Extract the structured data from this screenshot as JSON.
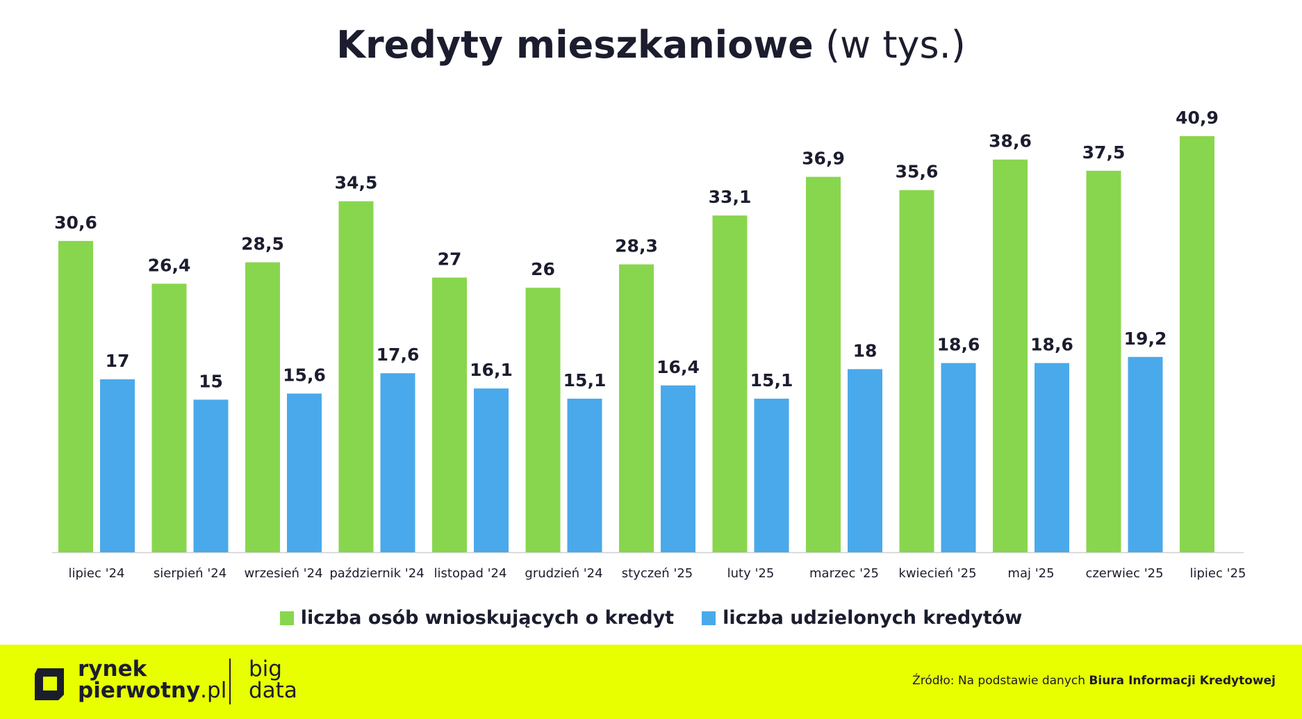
{
  "title": {
    "main": "Kredyty mieszkaniowe",
    "unit": "(w tys.)"
  },
  "colors": {
    "series1": "#88d64d",
    "series2": "#4aa9eb",
    "footer_bg": "#e8ff00",
    "text": "#1b1d2e"
  },
  "chart_data": {
    "type": "bar",
    "title": "Kredyty mieszkaniowe (w tys.)",
    "categories": [
      "lipiec '24",
      "sierpień '24",
      "wrzesień '24",
      "październik '24",
      "listopad '24",
      "grudzień '24",
      "styczeń '25",
      "luty '25",
      "marzec '25",
      "kwiecień '25",
      "maj '25",
      "czerwiec '25",
      "lipiec '25"
    ],
    "series": [
      {
        "name": "liczba osób wnioskujących o kredyt",
        "values": [
          30.6,
          26.4,
          28.5,
          34.5,
          27,
          26,
          28.3,
          33.1,
          36.9,
          35.6,
          38.6,
          37.5,
          40.9
        ],
        "labels": [
          "30,6",
          "26,4",
          "28,5",
          "34,5",
          "27",
          "26",
          "28,3",
          "33,1",
          "36,9",
          "35,6",
          "38,6",
          "37,5",
          "40,9"
        ]
      },
      {
        "name": "liczba udzielonych kredytów",
        "values": [
          17,
          15,
          15.6,
          17.6,
          16.1,
          15.1,
          16.4,
          15.1,
          18,
          18.6,
          18.6,
          19.2,
          null
        ],
        "labels": [
          "17",
          "15",
          "15,6",
          "17,6",
          "16,1",
          "15,1",
          "16,4",
          "15,1",
          "18",
          "18,6",
          "18,6",
          "19,2",
          ""
        ]
      }
    ],
    "ylim": [
      0,
      45
    ],
    "grid": false,
    "legend": "bottom"
  },
  "footer": {
    "logo_line1": "rynek",
    "logo_line2_bold": "pierwotny",
    "logo_line2_light": ".pl",
    "big_line1": "big",
    "big_line2": "data",
    "source_prefix": "Źródło: Na podstawie danych ",
    "source_bold": "Biura Informacji Kredytowej"
  }
}
